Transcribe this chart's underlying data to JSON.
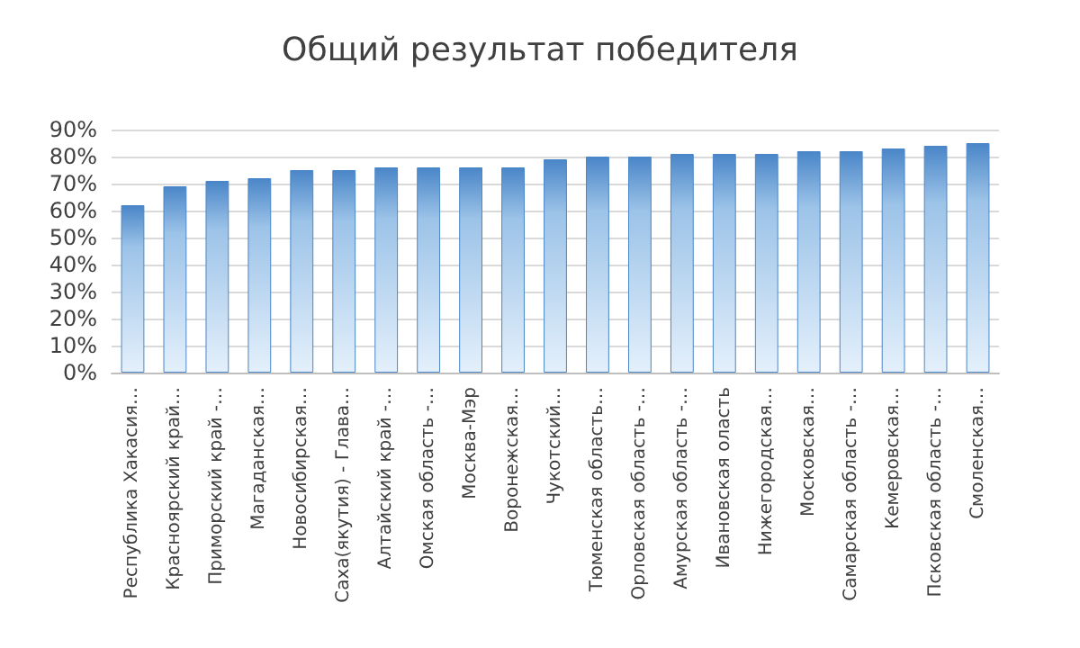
{
  "chart_data": {
    "type": "bar",
    "title": "Общий результат победителя",
    "categories": [
      "Республика Хакасия…",
      "Красноярский край…",
      "Приморский край -…",
      "Магаданская…",
      "Новосибирская…",
      "Саха(якутия) - Глава…",
      "Алтайский край -…",
      "Омская область -…",
      "Москва-Мэр",
      "Воронежская…",
      "Чукотский…",
      "Тюменская область…",
      "Орловская область -…",
      "Амурская область -…",
      "Ивановская оласть",
      "Нижегородская…",
      "Московская…",
      "Самарская область -…",
      "Кемеровская…",
      "Псковская область -…",
      "Смоленская…"
    ],
    "values": [
      62,
      69,
      71,
      72,
      75,
      75,
      76,
      76,
      76,
      76,
      79,
      80,
      80,
      81,
      81,
      81,
      82,
      82,
      83,
      84,
      85
    ],
    "color": "#4a86c8",
    "ylim": [
      0,
      90
    ],
    "yticks": [
      {
        "value": 0,
        "label": "0%"
      },
      {
        "value": 10,
        "label": "10%"
      },
      {
        "value": 20,
        "label": "20%"
      },
      {
        "value": 30,
        "label": "30%"
      },
      {
        "value": 40,
        "label": "40%"
      },
      {
        "value": 50,
        "label": "50%"
      },
      {
        "value": 60,
        "label": "60%"
      },
      {
        "value": 70,
        "label": "70%"
      },
      {
        "value": 80,
        "label": "80%"
      },
      {
        "value": 90,
        "label": "90%"
      }
    ],
    "grid": true
  }
}
